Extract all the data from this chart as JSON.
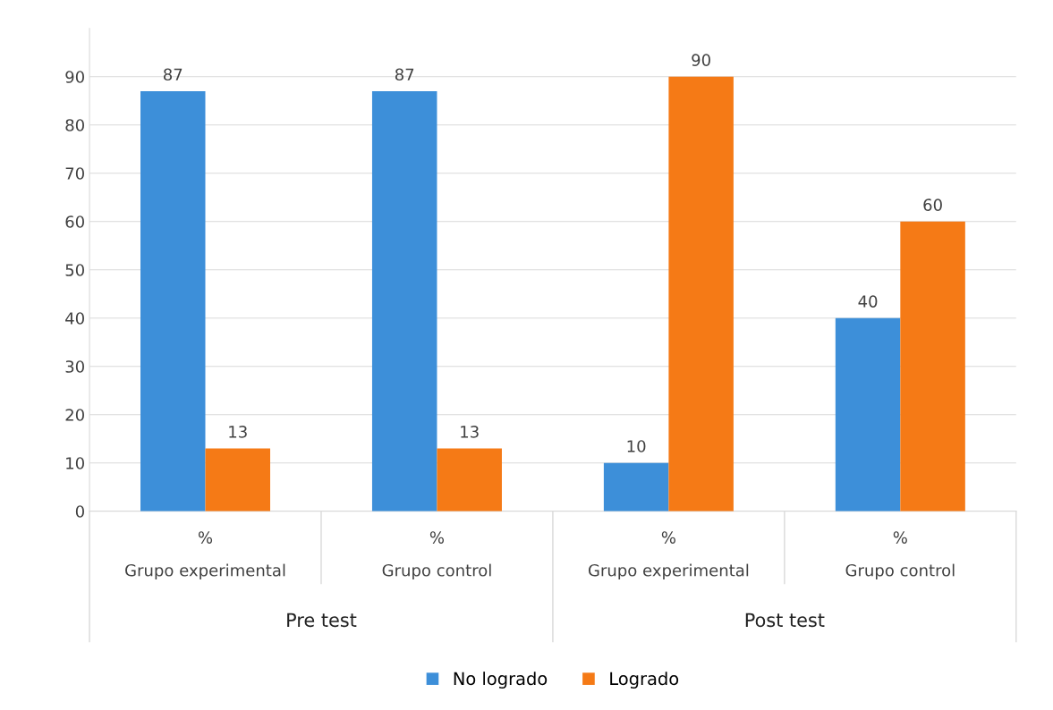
{
  "chart_data": {
    "type": "bar",
    "categories": [
      "%\nGrupo experimental",
      "%\nGrupo control",
      "%\nGrupo experimental",
      "%\nGrupo control"
    ],
    "series": [
      {
        "name": "No logrado",
        "color": "#3d8fd9",
        "values": [
          87,
          87,
          10,
          40
        ]
      },
      {
        "name": "Logrado",
        "color": "#f57a16",
        "values": [
          13,
          13,
          90,
          60
        ]
      }
    ],
    "annotations": [
      "Pre test",
      "Post test"
    ],
    "ylim": [
      0,
      100
    ],
    "yticks": [
      0,
      10,
      20,
      30,
      40,
      50,
      60,
      70,
      80,
      90
    ],
    "grid": "y",
    "legend": "bottom",
    "data_labels": true
  }
}
